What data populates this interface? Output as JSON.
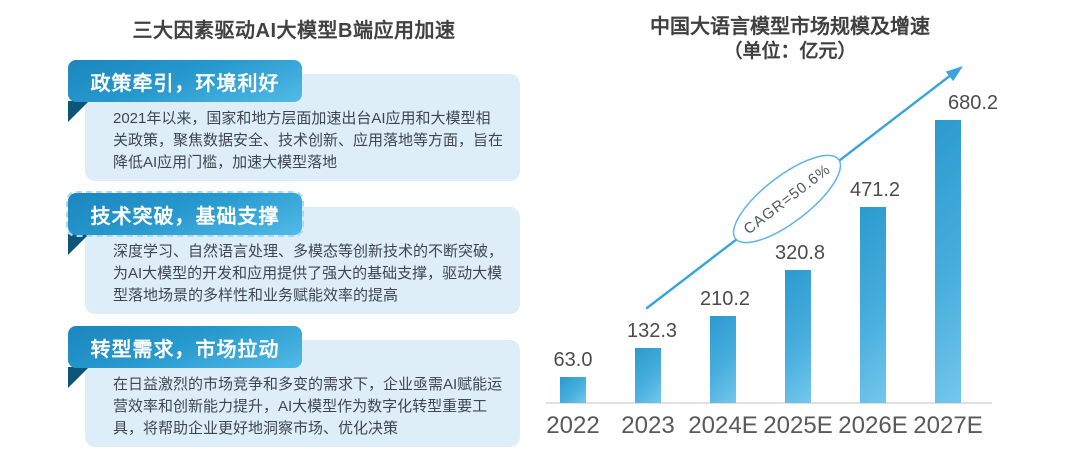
{
  "left_panel": {
    "title": "三大因素驱动AI大模型B端应用加速",
    "cards": [
      {
        "header": "政策牵引，环境利好",
        "body": "2021年以来，国家和地方层面加速出台AI应用和大模型相关政策，聚焦数据安全、技术创新、应用落地等方面，旨在降低AI应用门槛，加速大模型落地"
      },
      {
        "header": "技术突破，基础支撑",
        "body": "深度学习、自然语言处理、多模态等创新技术的不断突破，为AI大模型的开发和应用提供了强大的基础支撑，驱动大模型落地场景的多样性和业务赋能效率的提高"
      },
      {
        "header": "转型需求，市场拉动",
        "body": "在日益激烈的市场竞争和多变的需求下，企业亟需AI赋能运营效率和创新能力提升，AI大模型作为数字化转型重要工具，将帮助企业更好地洞察市场、优化决策"
      }
    ]
  },
  "chart": {
    "title": "中国大语言模型市场规模及增速",
    "subtitle": "（单位：亿元）",
    "annotation": "CAGR=50.6%"
  },
  "chart_data": {
    "type": "bar",
    "title": "中国大语言模型市场规模及增速",
    "unit": "亿元",
    "categories": [
      "2022",
      "2023",
      "2024E",
      "2025E",
      "2026E",
      "2027E"
    ],
    "values": [
      63.0,
      132.3,
      210.2,
      320.8,
      471.2,
      680.2
    ],
    "annotation": "CAGR=50.6%",
    "ylim": [
      0,
      700
    ],
    "grid": false,
    "legend": "none",
    "bar_color_top": "#2b9ace",
    "bar_color_bottom": "#74c7ec",
    "arrow_color": "#3aa4da"
  },
  "colors": {
    "header_gradient_start": "#1b86be",
    "header_gradient_end": "#52bae7",
    "card_body_bg": "#ddeef9",
    "fold": "#0c5478",
    "accent_blue": "#3aa4da",
    "text_dark": "#3d474f"
  }
}
